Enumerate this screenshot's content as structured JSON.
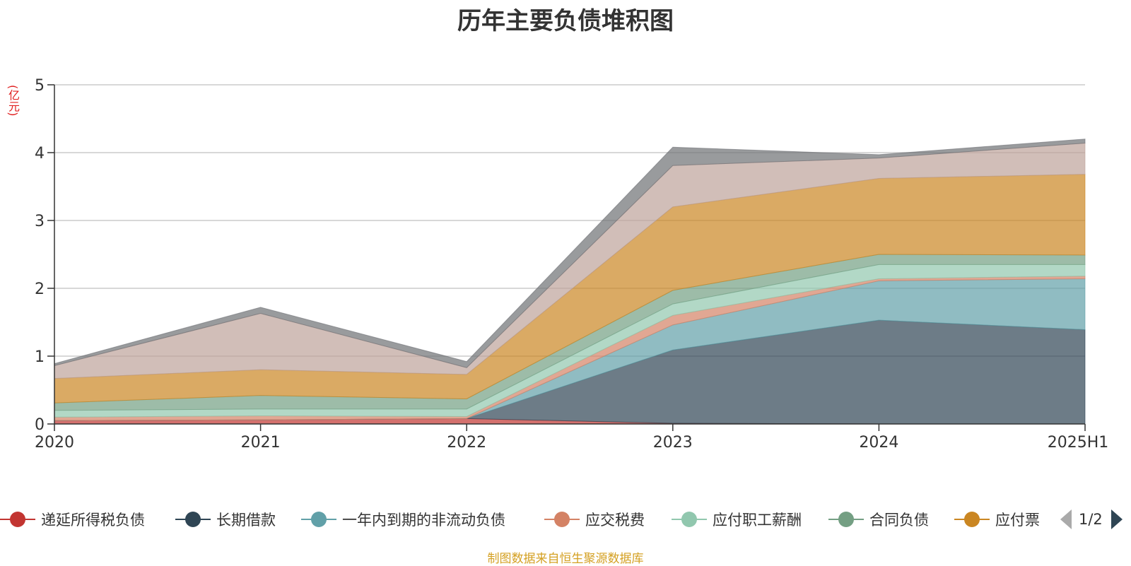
{
  "chart_data": {
    "type": "area",
    "stacked": true,
    "title": "历年主要负债堆积图",
    "unit_label": "(亿元)",
    "categories": [
      "2020",
      "2021",
      "2022",
      "2023",
      "2024",
      "2025H1"
    ],
    "ylim": [
      0,
      5
    ],
    "yticks": [
      "0",
      "1",
      "2",
      "3",
      "4",
      "5"
    ],
    "grid": true,
    "series": [
      {
        "name": "递延所得税负债",
        "color": "#c23531",
        "values": [
          0.05,
          0.06,
          0.08,
          0.01,
          0.0,
          0.0
        ]
      },
      {
        "name": "长期借款",
        "color": "#2f4554",
        "values": [
          0.0,
          0.0,
          0.0,
          1.08,
          1.53,
          1.39
        ]
      },
      {
        "name": "一年内到期的非流动负债",
        "color": "#61a0a8",
        "values": [
          0.0,
          0.0,
          0.0,
          0.37,
          0.58,
          0.75
        ]
      },
      {
        "name": "应交税费",
        "color": "#d48265",
        "values": [
          0.05,
          0.06,
          0.03,
          0.14,
          0.03,
          0.04
        ]
      },
      {
        "name": "应付职工薪酬",
        "color": "#91c7ae",
        "values": [
          0.1,
          0.1,
          0.11,
          0.17,
          0.21,
          0.17
        ]
      },
      {
        "name": "合同负债",
        "color": "#749f83",
        "values": [
          0.11,
          0.2,
          0.15,
          0.2,
          0.15,
          0.14
        ]
      },
      {
        "name": "应付票",
        "color": "#ca8622",
        "values": [
          0.36,
          0.38,
          0.36,
          1.23,
          1.12,
          1.19
        ]
      },
      {
        "name": "",
        "color": "#bda29a",
        "values": [
          0.19,
          0.83,
          0.1,
          0.61,
          0.3,
          0.46
        ]
      },
      {
        "name": "",
        "color": "#6e7074",
        "values": [
          0.03,
          0.09,
          0.09,
          0.27,
          0.05,
          0.06
        ]
      }
    ]
  },
  "legend": {
    "items": [
      {
        "label": "递延所得税负债",
        "color": "#c23531"
      },
      {
        "label": "长期借款",
        "color": "#2f4554"
      },
      {
        "label": "一年内到期的非流动负债",
        "color": "#61a0a8"
      },
      {
        "label": "应交税费",
        "color": "#d48265"
      },
      {
        "label": "应付职工薪酬",
        "color": "#91c7ae"
      },
      {
        "label": "合同负债",
        "color": "#749f83"
      },
      {
        "label": "应付票",
        "color": "#ca8622"
      }
    ],
    "page_indicator": "1/2"
  },
  "source_note": "制图数据来自恒生聚源数据库"
}
